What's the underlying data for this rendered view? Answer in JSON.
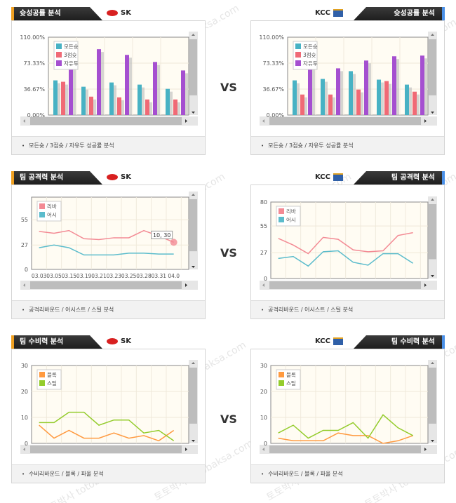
{
  "vs_label": "VS",
  "watermark": "토토박사 totobaksa.com",
  "teams": {
    "home": "SK",
    "away": "KCC"
  },
  "colors": {
    "teal": "#48b2c4",
    "red": "#f06a76",
    "purple": "#a54fd0",
    "line_red": "#f38a94",
    "line_blue": "#5bbccc",
    "orange": "#ff9a40",
    "green": "#94cc2c"
  },
  "sections": [
    {
      "title": "슛성공률 분석",
      "footer": "모든슛 / 3점슛 / 자유투 성공률 분석"
    },
    {
      "title": "팀 공격력 분석",
      "footer": "공격리바운드 / 어시스트 / 스틸 분석"
    },
    {
      "title": "팀 수비력 분석",
      "footer": "수비리바운드 / 블록 / 파울 분석"
    }
  ],
  "chart_data": [
    {
      "id": "shot-sk",
      "type": "bar",
      "team": "SK",
      "ylim": [
        0,
        110
      ],
      "yticks": [
        "110.00%",
        "73.33%",
        "36.67%",
        "0.00%"
      ],
      "ytick_values": [
        110,
        73.33,
        36.67,
        0
      ],
      "categories": [
        "1",
        "2",
        "3",
        "4",
        "5"
      ],
      "series": [
        {
          "name": "모든슛",
          "color": "#48b2c4",
          "values": [
            49,
            40,
            46,
            43,
            37
          ]
        },
        {
          "name": "3점슛",
          "color": "#f06a76",
          "values": [
            47,
            26,
            25,
            22,
            22
          ]
        },
        {
          "name": "자유투",
          "color": "#a54fd0",
          "values": [
            72,
            93,
            85,
            75,
            63
          ]
        }
      ]
    },
    {
      "id": "shot-kcc",
      "type": "bar",
      "team": "KCC",
      "ylim": [
        0,
        110
      ],
      "yticks": [
        "110.00%",
        "73.33%",
        "36.67%",
        "0.00%"
      ],
      "ytick_values": [
        110,
        73.33,
        36.67,
        0
      ],
      "categories": [
        "1",
        "2",
        "3",
        "4",
        "5"
      ],
      "series": [
        {
          "name": "모든슛",
          "color": "#48b2c4",
          "values": [
            49,
            51,
            62,
            50,
            43
          ]
        },
        {
          "name": "3점슛",
          "color": "#f06a76",
          "values": [
            29,
            29,
            36,
            48,
            33
          ]
        },
        {
          "name": "자유투",
          "color": "#a54fd0",
          "values": [
            70,
            66,
            77,
            83,
            84
          ]
        }
      ]
    },
    {
      "id": "attack-sk",
      "type": "line",
      "team": "SK",
      "ylim": [
        0,
        80
      ],
      "yticks": [
        "55",
        "27",
        "0"
      ],
      "ytick_values": [
        55,
        27,
        0
      ],
      "x": [
        "03.03",
        "03.05",
        "03.15",
        "03.19",
        "03.21",
        "03.23",
        "03.25",
        "03.28",
        "03.31",
        "04.0"
      ],
      "tooltip": "10, 30",
      "series": [
        {
          "name": "리바",
          "color": "#f38a94",
          "values": [
            42,
            40,
            43,
            34,
            33,
            35,
            35,
            43,
            37,
            30
          ]
        },
        {
          "name": "어시",
          "color": "#5bbccc",
          "values": [
            24,
            27,
            24,
            16,
            16,
            16,
            18,
            18,
            17,
            17
          ]
        }
      ]
    },
    {
      "id": "attack-kcc",
      "type": "line",
      "team": "KCC",
      "ylim": [
        0,
        80
      ],
      "yticks": [
        "80",
        "55",
        "27",
        "0"
      ],
      "ytick_values": [
        80,
        55,
        27,
        0
      ],
      "series": [
        {
          "name": "리바",
          "color": "#f38a94",
          "values": [
            42,
            35,
            26,
            43,
            41,
            30,
            28,
            29,
            45,
            48
          ]
        },
        {
          "name": "어시",
          "color": "#5bbccc",
          "values": [
            21,
            23,
            13,
            28,
            29,
            17,
            14,
            26,
            26,
            16
          ]
        }
      ]
    },
    {
      "id": "defense-sk",
      "type": "line",
      "team": "SK",
      "ylim": [
        0,
        30
      ],
      "yticks": [
        "30",
        "20",
        "10",
        "0"
      ],
      "ytick_values": [
        30,
        20,
        10,
        0
      ],
      "series": [
        {
          "name": "블록",
          "color": "#ff9a40",
          "values": [
            7,
            2,
            5,
            2,
            2,
            4,
            2,
            3,
            1,
            5
          ]
        },
        {
          "name": "스틸",
          "color": "#94cc2c",
          "values": [
            8,
            8,
            12,
            12,
            7,
            9,
            9,
            4,
            5,
            1
          ]
        }
      ]
    },
    {
      "id": "defense-kcc",
      "type": "line",
      "team": "KCC",
      "ylim": [
        0,
        30
      ],
      "yticks": [
        "30",
        "20",
        "10",
        "0"
      ],
      "ytick_values": [
        30,
        20,
        10,
        0
      ],
      "series": [
        {
          "name": "블록",
          "color": "#ff9a40",
          "values": [
            2,
            1,
            1,
            1,
            4,
            3,
            3,
            0,
            1,
            3
          ]
        },
        {
          "name": "스틸",
          "color": "#94cc2c",
          "values": [
            4,
            7,
            2,
            5,
            5,
            8,
            2,
            11,
            6,
            3
          ]
        }
      ]
    }
  ]
}
